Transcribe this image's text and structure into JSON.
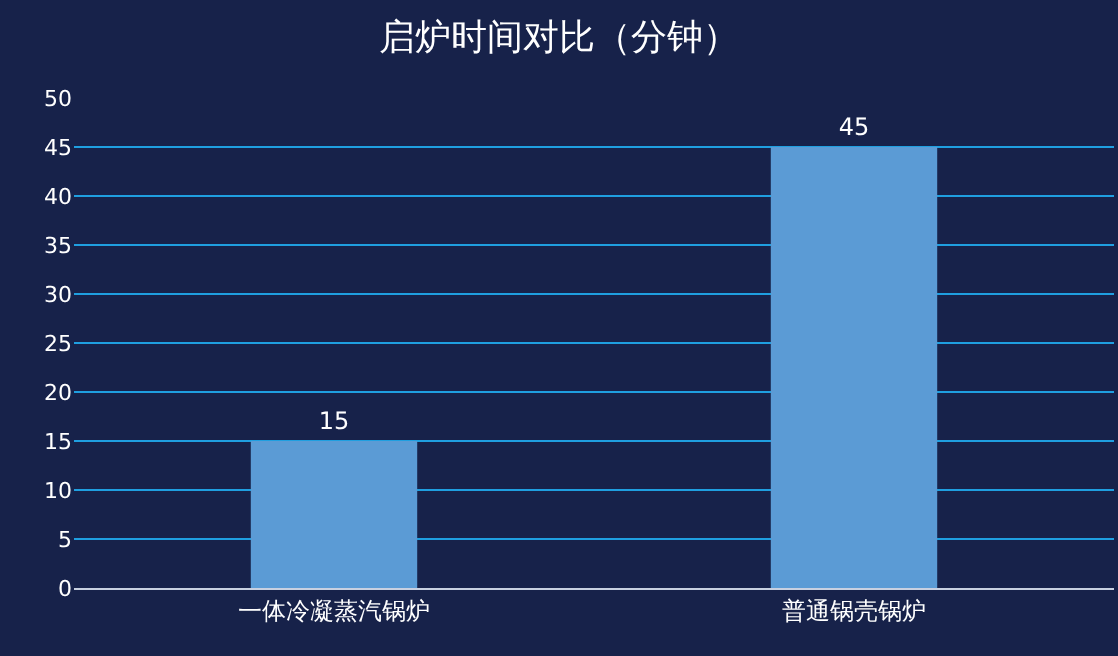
{
  "chart_data": {
    "type": "bar",
    "title": "启炉时间对比（分钟）",
    "categories": [
      "一体冷凝蒸汽锅炉",
      "普通锅壳锅炉"
    ],
    "values": [
      15,
      45
    ],
    "color": "#5b9bd5",
    "ylim": [
      0,
      50
    ],
    "yticks": [
      0,
      5,
      10,
      15,
      20,
      25,
      30,
      35,
      40,
      45,
      50
    ],
    "grid": "y",
    "data_labels": true
  }
}
